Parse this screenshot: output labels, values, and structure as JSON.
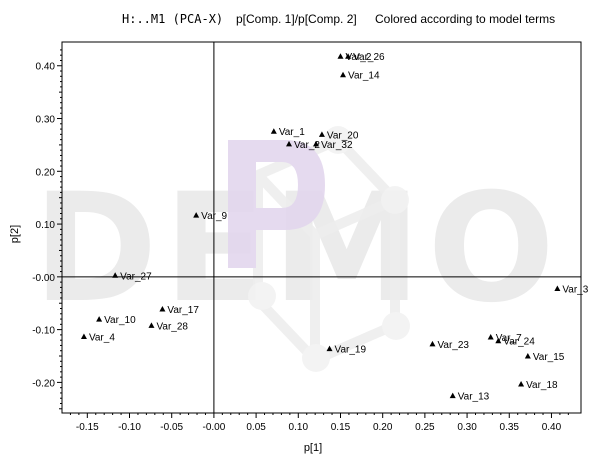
{
  "header": {
    "model": "H:..M1 (PCA-X)",
    "axes_desc": "p[Comp. 1]/p[Comp. 2]",
    "coloring": "Colored according to model terms"
  },
  "watermark": {
    "text": "DEMO",
    "color": "#ebebeb",
    "logo_color": "#e3d7ee"
  },
  "chart_data": {
    "type": "scatter",
    "title": "H:..M1 (PCA-X)   p[Comp. 1]/p[Comp. 2]",
    "xlabel": "p[1]",
    "ylabel": "p[2]",
    "xlim": [
      -0.18,
      0.435
    ],
    "ylim": [
      -0.258,
      0.445
    ],
    "xticks": [
      -0.15,
      -0.1,
      -0.05,
      0.0,
      0.05,
      0.1,
      0.15,
      0.2,
      0.25,
      0.3,
      0.35,
      0.4
    ],
    "xtick_labels": [
      "-0.15",
      "-0.10",
      "-0.05",
      "-0.00",
      "0.05",
      "0.10",
      "0.15",
      "0.20",
      "0.25",
      "0.30",
      "0.35",
      "0.40"
    ],
    "yticks": [
      -0.2,
      -0.1,
      0.0,
      0.1,
      0.2,
      0.3,
      0.4
    ],
    "ytick_labels": [
      "-0.20",
      "-0.10",
      "-0.00",
      "0.10",
      "0.20",
      "0.30",
      "0.40"
    ],
    "grid": false,
    "marker": "triangle",
    "marker_color": "#000000",
    "points": [
      {
        "label": "Var_3",
        "x": 0.407,
        "y": -0.022
      },
      {
        "label": "Var_7",
        "x": 0.328,
        "y": -0.114
      },
      {
        "label": "Var_24",
        "x": 0.337,
        "y": -0.121
      },
      {
        "label": "Var_15",
        "x": 0.372,
        "y": -0.15
      },
      {
        "label": "Var_18",
        "x": 0.364,
        "y": -0.203
      },
      {
        "label": "Var_13",
        "x": 0.283,
        "y": -0.225
      },
      {
        "label": "Var_23",
        "x": 0.259,
        "y": -0.127
      },
      {
        "label": "Var_19",
        "x": 0.137,
        "y": -0.136
      },
      {
        "label": "Var_2",
        "x": 0.15,
        "y": 0.418
      },
      {
        "label": "Var_26",
        "x": 0.159,
        "y": 0.418
      },
      {
        "label": "Var_14",
        "x": 0.153,
        "y": 0.383
      },
      {
        "label": "Var_20",
        "x": 0.128,
        "y": 0.27
      },
      {
        "label": "Var_2",
        "x": 0.089,
        "y": 0.252
      },
      {
        "label": "Var_32",
        "x": 0.121,
        "y": 0.252
      },
      {
        "label": "Var_1",
        "x": 0.071,
        "y": 0.276
      },
      {
        "label": "Var_9",
        "x": -0.021,
        "y": 0.117
      },
      {
        "label": "Var_27",
        "x": -0.117,
        "y": 0.003
      },
      {
        "label": "Var_17",
        "x": -0.061,
        "y": -0.061
      },
      {
        "label": "Var_28",
        "x": -0.074,
        "y": -0.092
      },
      {
        "label": "Var_10",
        "x": -0.136,
        "y": -0.08
      },
      {
        "label": "Var_4",
        "x": -0.154,
        "y": -0.113
      }
    ]
  }
}
